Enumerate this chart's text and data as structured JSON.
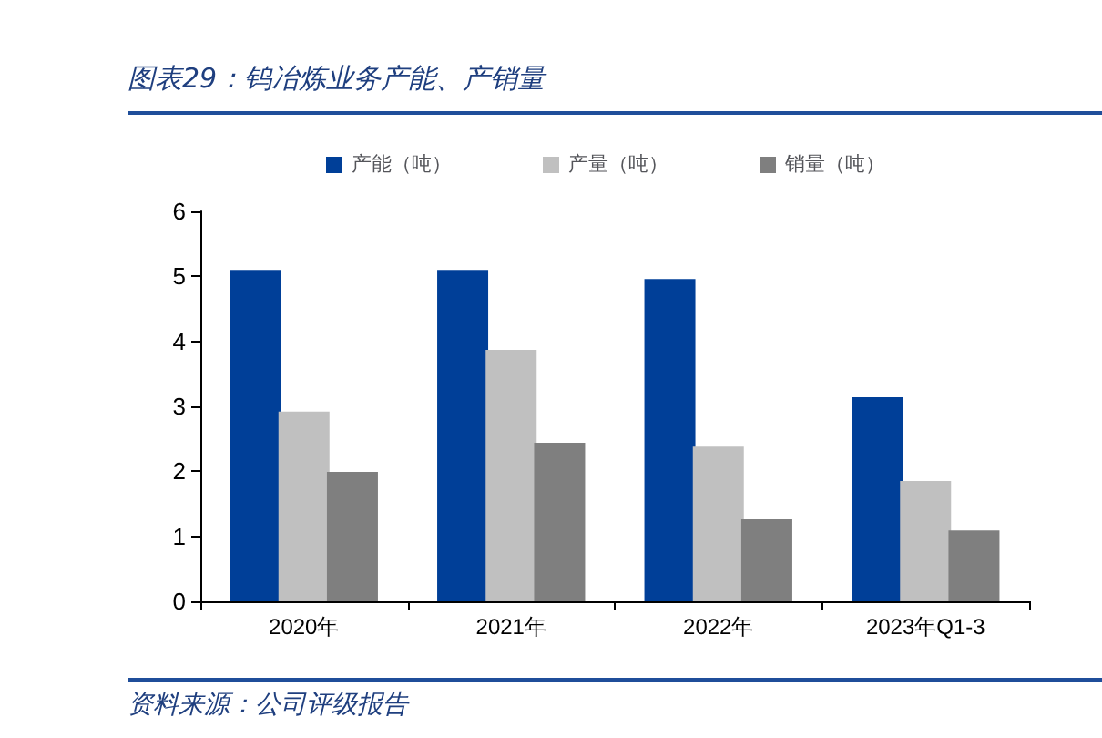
{
  "chart_data": {
    "type": "bar",
    "title": "图表29：钨冶炼业务产能、产销量",
    "categories": [
      "2020年",
      "2021年",
      "2022年",
      "2023年Q1-3"
    ],
    "series": [
      {
        "name": "产能（吨）",
        "color": "#003f98",
        "values": [
          5.1,
          5.1,
          4.96,
          3.14
        ]
      },
      {
        "name": "产量（吨）",
        "color": "#c0c0c0",
        "values": [
          2.92,
          3.87,
          2.38,
          1.85
        ]
      },
      {
        "name": "销量（吨）",
        "color": "#7f7f7f",
        "values": [
          1.99,
          2.44,
          1.26,
          1.09
        ]
      }
    ],
    "ylim": [
      0,
      6
    ],
    "yticks": [
      0,
      1,
      2,
      3,
      4,
      5,
      6
    ],
    "grid": false,
    "legend": "top",
    "annotations": [
      "资料来源：公司评级报告"
    ]
  }
}
